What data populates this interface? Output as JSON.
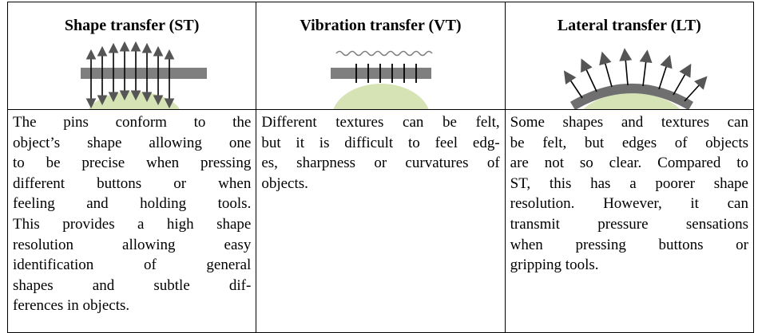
{
  "table": {
    "columns": [
      {
        "title": "Shape transfer (ST)",
        "lines": [
          "The pins conform to the",
          "object’s shape allowing one",
          "to be precise when pressing",
          "different buttons or when",
          "feeling and holding tools.",
          "This provides a high shape",
          "resolution allowing easy",
          "identification of general",
          "shapes and subtle dif-",
          "ferences in objects."
        ]
      },
      {
        "title": "Vibration transfer (VT)",
        "lines": [
          "Different textures can be felt,",
          "but it is difficult to feel edg-",
          "es, sharpness or curvatures of",
          "objects."
        ]
      },
      {
        "title": "Lateral transfer (LT)",
        "lines": [
          "Some shapes and textures can",
          "be felt, but edges of objects",
          "are not so clear. Compared to",
          "ST, this has a poorer shape",
          "resolution. However, it can",
          "transmit pressure sensations",
          "when pressing buttons or",
          "gripping tools."
        ]
      }
    ]
  }
}
